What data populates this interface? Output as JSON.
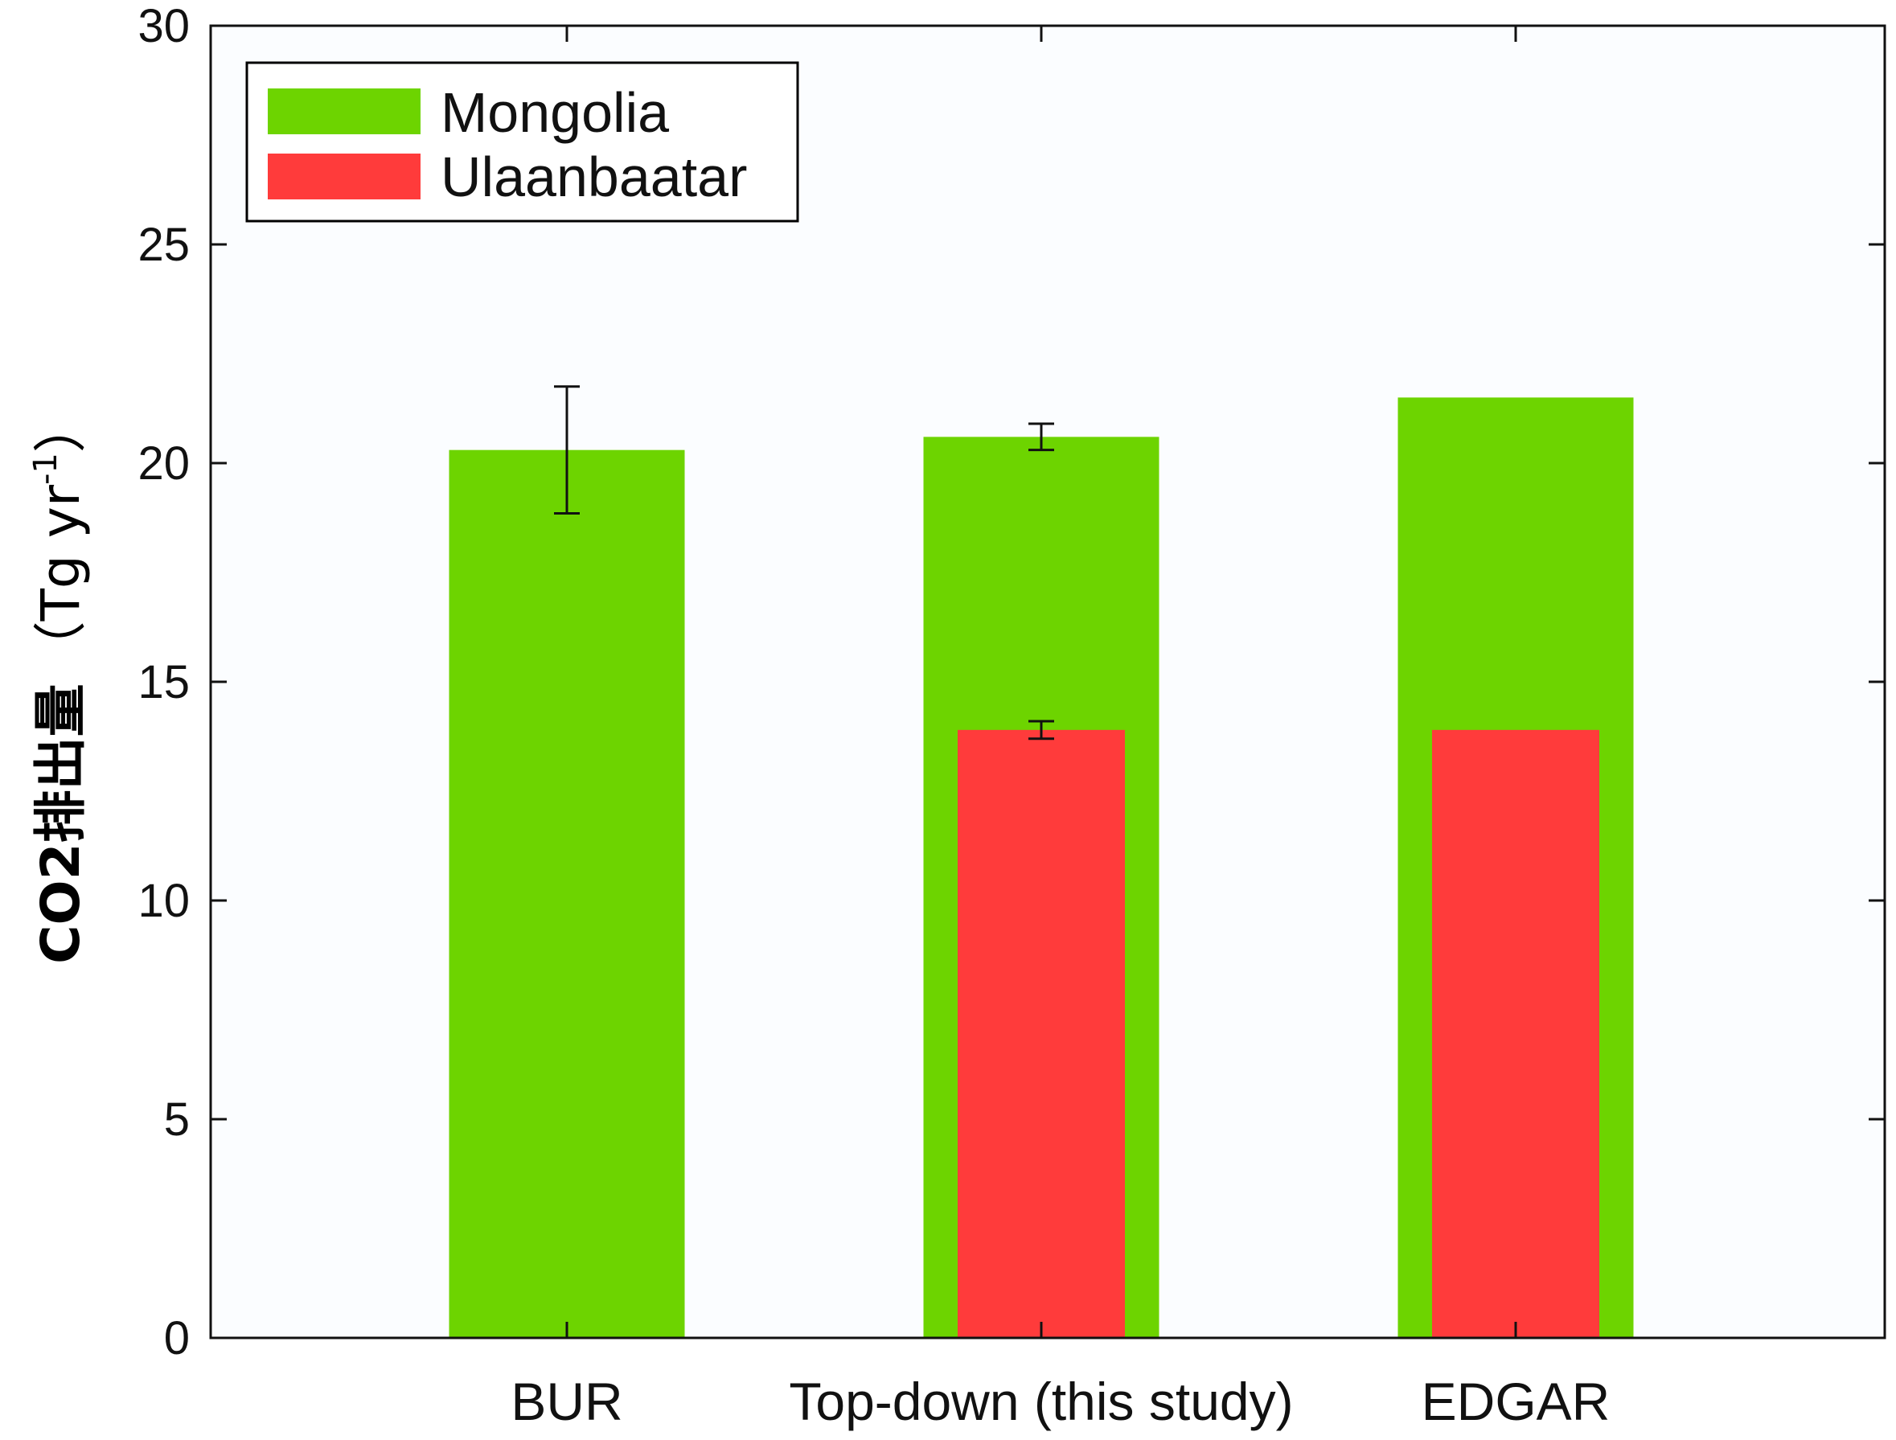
{
  "chart_data": {
    "type": "bar",
    "title": "",
    "xlabel": "",
    "ylabel_main": "CO2排出量",
    "ylabel_unit_open": "（Tg yr",
    "ylabel_unit_sup": "-1",
    "ylabel_unit_close": "）",
    "ylim": [
      0,
      30
    ],
    "yticks": [
      0,
      5,
      10,
      15,
      20,
      25,
      30
    ],
    "categories": [
      "BUR",
      "Top-down (this study)",
      "EDGAR"
    ],
    "legend_position": "top-left",
    "series": [
      {
        "name": "Mongolia",
        "color": "#6dd400",
        "values": [
          20.3,
          20.6,
          21.5
        ],
        "error": [
          1.45,
          0.3,
          null
        ]
      },
      {
        "name": "Ulaanbaatar",
        "color": "#ff3b3b",
        "values": [
          null,
          13.9,
          13.9
        ],
        "error": [
          null,
          0.2,
          null
        ]
      }
    ]
  }
}
